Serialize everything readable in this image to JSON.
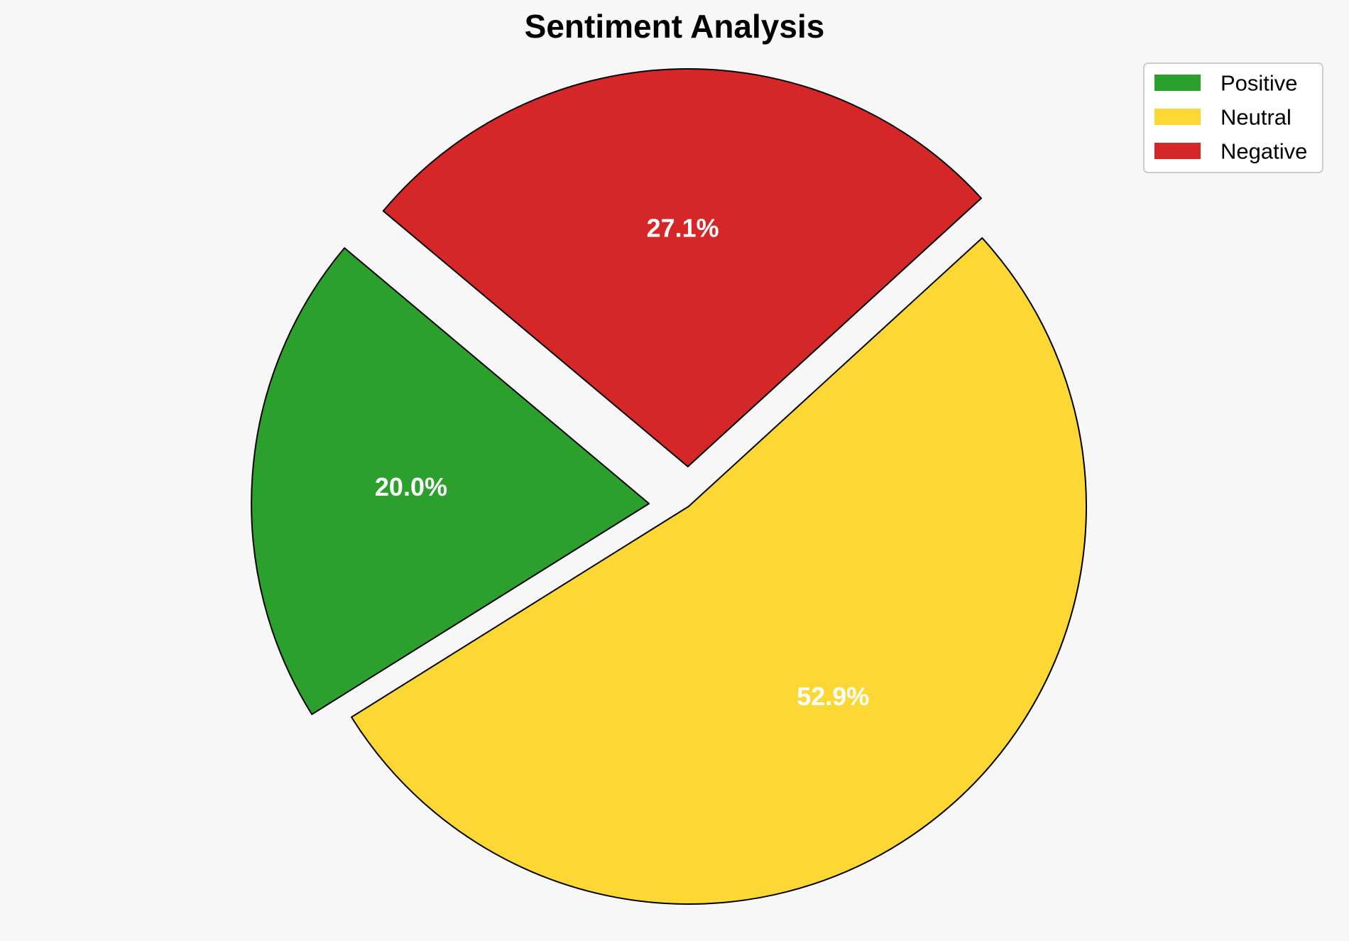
{
  "chart_data": {
    "type": "pie",
    "title": "Sentiment Analysis",
    "start_angle_deg": 140,
    "direction": "counterclockwise",
    "legend_position": "top-right",
    "slices": [
      {
        "label": "Positive",
        "value": 20.0,
        "pct_label": "20.0%",
        "color": "#2ca02c",
        "explode": 0.1
      },
      {
        "label": "Neutral",
        "value": 52.9,
        "pct_label": "52.9%",
        "color": "#fdd835",
        "explode": 0.0
      },
      {
        "label": "Negative",
        "value": 27.1,
        "pct_label": "27.1%",
        "color": "#d62728",
        "explode": 0.1
      }
    ]
  }
}
